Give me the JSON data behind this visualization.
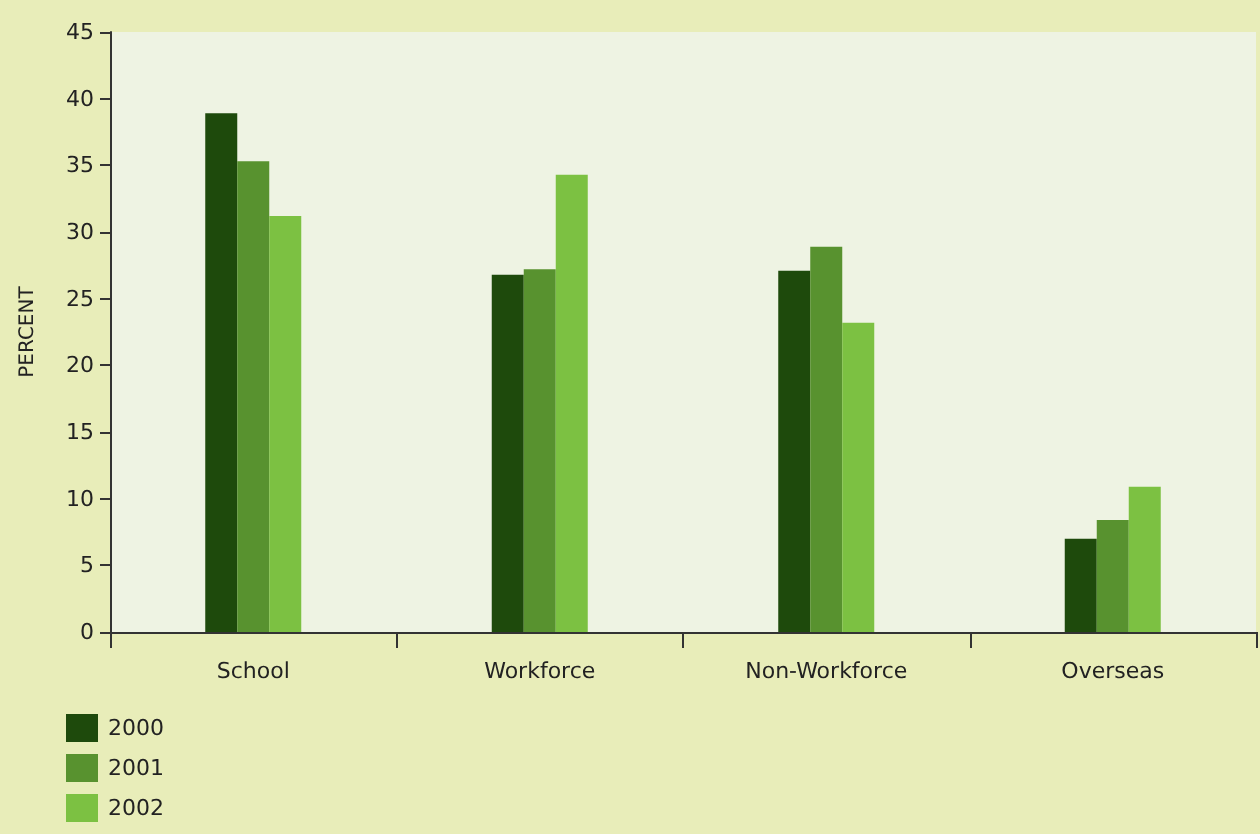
{
  "chart_data": {
    "type": "bar",
    "ylabel": "PERCENT",
    "categories": [
      "School",
      "Workforce",
      "Non-Workforce",
      "Overseas"
    ],
    "series": [
      {
        "name": "2000",
        "color": "#1e4a0c",
        "values": [
          38.9,
          26.8,
          27.1,
          7.0
        ]
      },
      {
        "name": "2001",
        "color": "#58922f",
        "values": [
          35.3,
          27.2,
          28.9,
          8.4
        ]
      },
      {
        "name": "2002",
        "color": "#7cc142",
        "values": [
          31.2,
          34.3,
          23.2,
          10.9
        ]
      }
    ],
    "ylim": [
      0,
      45
    ],
    "yticks": [
      0,
      5,
      10,
      15,
      20,
      25,
      30,
      35,
      40,
      45
    ],
    "grid": false,
    "legend": "bottom left"
  }
}
